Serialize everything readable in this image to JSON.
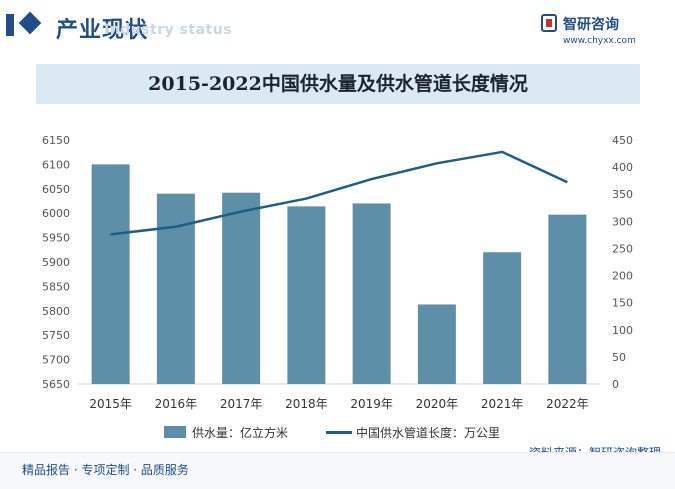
{
  "header": {
    "title": "产业现状",
    "subtitle": "Industry status"
  },
  "brand": {
    "name": "智研咨询",
    "url": "www.chyxx.com"
  },
  "chart_data": {
    "type": "bar",
    "title": "2015-2022中国供水量及供水管道长度情况",
    "categories": [
      "2015年",
      "2016年",
      "2017年",
      "2018年",
      "2019年",
      "2020年",
      "2021年",
      "2022年"
    ],
    "series": [
      {
        "name": "供水量：亿立方米",
        "type": "bar",
        "axis": "left",
        "color": "#5e8fa8",
        "values": [
          6100,
          6040,
          6042,
          6014,
          6020,
          5813,
          5920,
          5997
        ]
      },
      {
        "name": "中国供水管道长度：万公里",
        "type": "line",
        "axis": "right",
        "color": "#1e5f85",
        "values": [
          276,
          290,
          318,
          342,
          378,
          407,
          428,
          372
        ]
      }
    ],
    "y_left": {
      "min": 5650,
      "max": 6150,
      "ticks": [
        "6150",
        "6100",
        "6050",
        "6000",
        "5950",
        "5900",
        "5850",
        "5800",
        "5750",
        "5700",
        "5650"
      ]
    },
    "y_right": {
      "min": 0,
      "max": 450,
      "ticks": [
        "450",
        "400",
        "350",
        "300",
        "250",
        "200",
        "150",
        "100",
        "50",
        "0"
      ]
    },
    "grid": false,
    "legend_position": "bottom"
  },
  "source": "资料来源：智研咨询整理",
  "footer": "精品报告 · 专项定制 · 品质服务"
}
